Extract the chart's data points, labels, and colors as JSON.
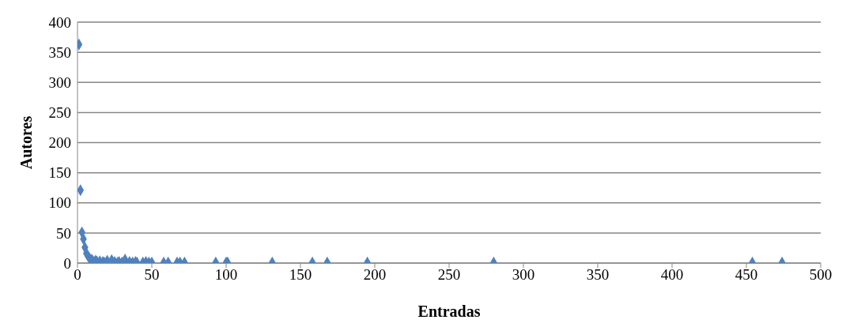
{
  "chart_data": {
    "type": "scatter",
    "xlabel": "Entradas",
    "ylabel": "Autores",
    "x": [
      1,
      2,
      3,
      4,
      5,
      6,
      7,
      8,
      9,
      10,
      12,
      13,
      15,
      17,
      18,
      20,
      23,
      25,
      27,
      28,
      30,
      32,
      35,
      37,
      39,
      40,
      44,
      46,
      48,
      50,
      58,
      61,
      67,
      69,
      72,
      93,
      100,
      101,
      131,
      158,
      168,
      195,
      280,
      454,
      474
    ],
    "series": [
      {
        "color": "#4f81bd",
        "values": [
          363,
          121,
          51,
          40,
          26,
          16,
          12,
          8,
          6,
          5,
          4,
          3,
          3,
          2,
          1,
          4,
          5,
          2,
          1,
          2,
          1,
          6,
          2,
          1,
          2,
          1,
          1,
          2,
          1,
          1,
          1,
          1,
          1,
          1,
          1,
          1,
          1,
          1,
          1,
          1,
          1,
          1,
          1,
          1,
          1
        ]
      }
    ],
    "xlim": [
      0,
      500
    ],
    "xticks": [
      0,
      50,
      100,
      150,
      200,
      250,
      300,
      350,
      400,
      450,
      500
    ],
    "ylim": [
      0,
      400
    ],
    "yticks": [
      0,
      50,
      100,
      150,
      200,
      250,
      300,
      350,
      400
    ],
    "grid": "y",
    "marker": "diamond",
    "legend": false
  }
}
